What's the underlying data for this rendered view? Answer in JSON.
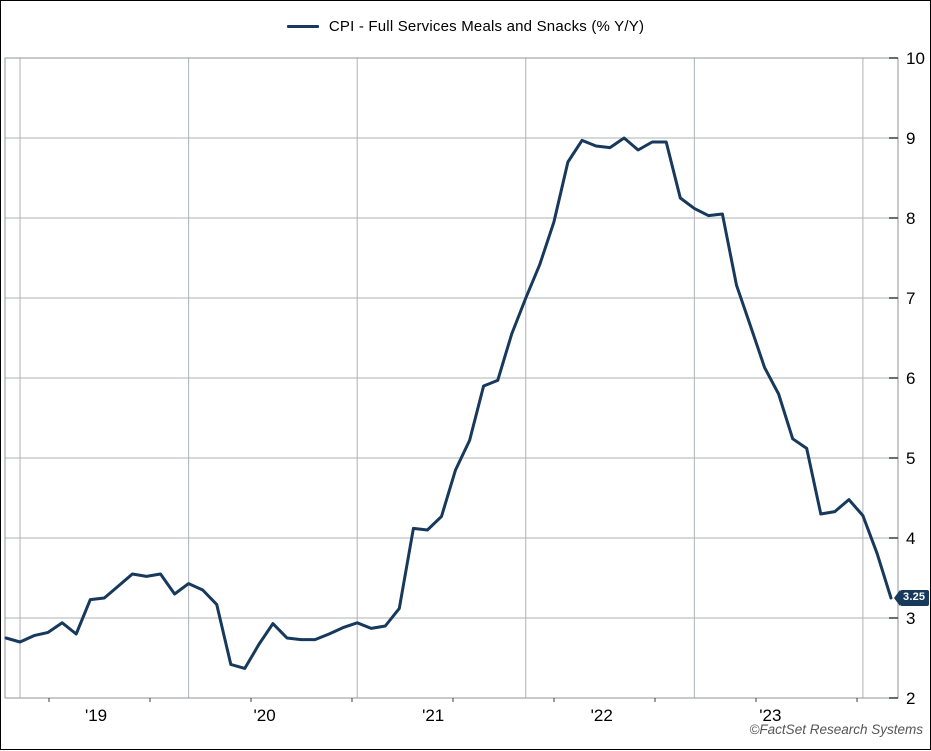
{
  "legend": {
    "series_label": "CPI - Full Services Meals and Snacks (% Y/Y)"
  },
  "badge": {
    "last_value_label": "3.25"
  },
  "footer": {
    "copyright": "©FactSet Research Systems"
  },
  "colors": {
    "line": "#16395c",
    "grid": "#adb3b7",
    "plot_border": "#8f979c",
    "tick": "#3c3c3c",
    "axis_label": "#000000",
    "badge_bg": "#16395c",
    "badge_text": "#ffffff",
    "copyright": "#555555"
  },
  "chart_data": {
    "type": "line",
    "title": "CPI - Full Services Meals and Snacks (% Y/Y)",
    "frequency": "monthly",
    "grid": true,
    "legend_position": "top-center",
    "y_axis_side": "right",
    "ylim": [
      2,
      10
    ],
    "y_ticks": [
      2,
      3,
      4,
      5,
      6,
      7,
      8,
      9,
      10
    ],
    "x_tick_labels": [
      "'19",
      "'20",
      "'21",
      "'22",
      "'23"
    ],
    "last_value": 3.25,
    "x_months": [
      "2018-12",
      "2019-01",
      "2019-02",
      "2019-03",
      "2019-04",
      "2019-05",
      "2019-06",
      "2019-07",
      "2019-08",
      "2019-09",
      "2019-10",
      "2019-11",
      "2019-12",
      "2020-01",
      "2020-02",
      "2020-03",
      "2020-04",
      "2020-05",
      "2020-06",
      "2020-07",
      "2020-08",
      "2020-09",
      "2020-10",
      "2020-11",
      "2020-12",
      "2021-01",
      "2021-02",
      "2021-03",
      "2021-04",
      "2021-05",
      "2021-06",
      "2021-07",
      "2021-08",
      "2021-09",
      "2021-10",
      "2021-11",
      "2021-12",
      "2022-01",
      "2022-02",
      "2022-03",
      "2022-04",
      "2022-05",
      "2022-06",
      "2022-07",
      "2022-08",
      "2022-09",
      "2022-10",
      "2022-11",
      "2022-12",
      "2023-01",
      "2023-02",
      "2023-03",
      "2023-04",
      "2023-05",
      "2023-06",
      "2023-07",
      "2023-08",
      "2023-09",
      "2023-10",
      "2023-11",
      "2023-12",
      "2024-01",
      "2024-02",
      "2024-03"
    ],
    "series": [
      {
        "name": "CPI - Full Services Meals and Snacks (% Y/Y)",
        "values": [
          2.75,
          2.7,
          2.78,
          2.82,
          2.94,
          2.8,
          3.23,
          3.25,
          3.4,
          3.55,
          3.52,
          3.55,
          3.3,
          3.43,
          3.35,
          3.17,
          2.42,
          2.37,
          2.67,
          2.93,
          2.75,
          2.73,
          2.73,
          2.8,
          2.88,
          2.94,
          2.87,
          2.9,
          3.12,
          4.12,
          4.1,
          4.27,
          4.85,
          5.22,
          5.9,
          5.97,
          6.55,
          7.0,
          7.42,
          7.95,
          8.7,
          8.97,
          8.9,
          8.88,
          9.0,
          8.85,
          8.95,
          8.95,
          8.25,
          8.12,
          8.03,
          8.05,
          7.16,
          6.65,
          6.13,
          5.8,
          5.24,
          5.12,
          4.3,
          4.33,
          4.48,
          4.28,
          3.81,
          3.25
        ]
      }
    ],
    "source": "©FactSet Research Systems"
  }
}
